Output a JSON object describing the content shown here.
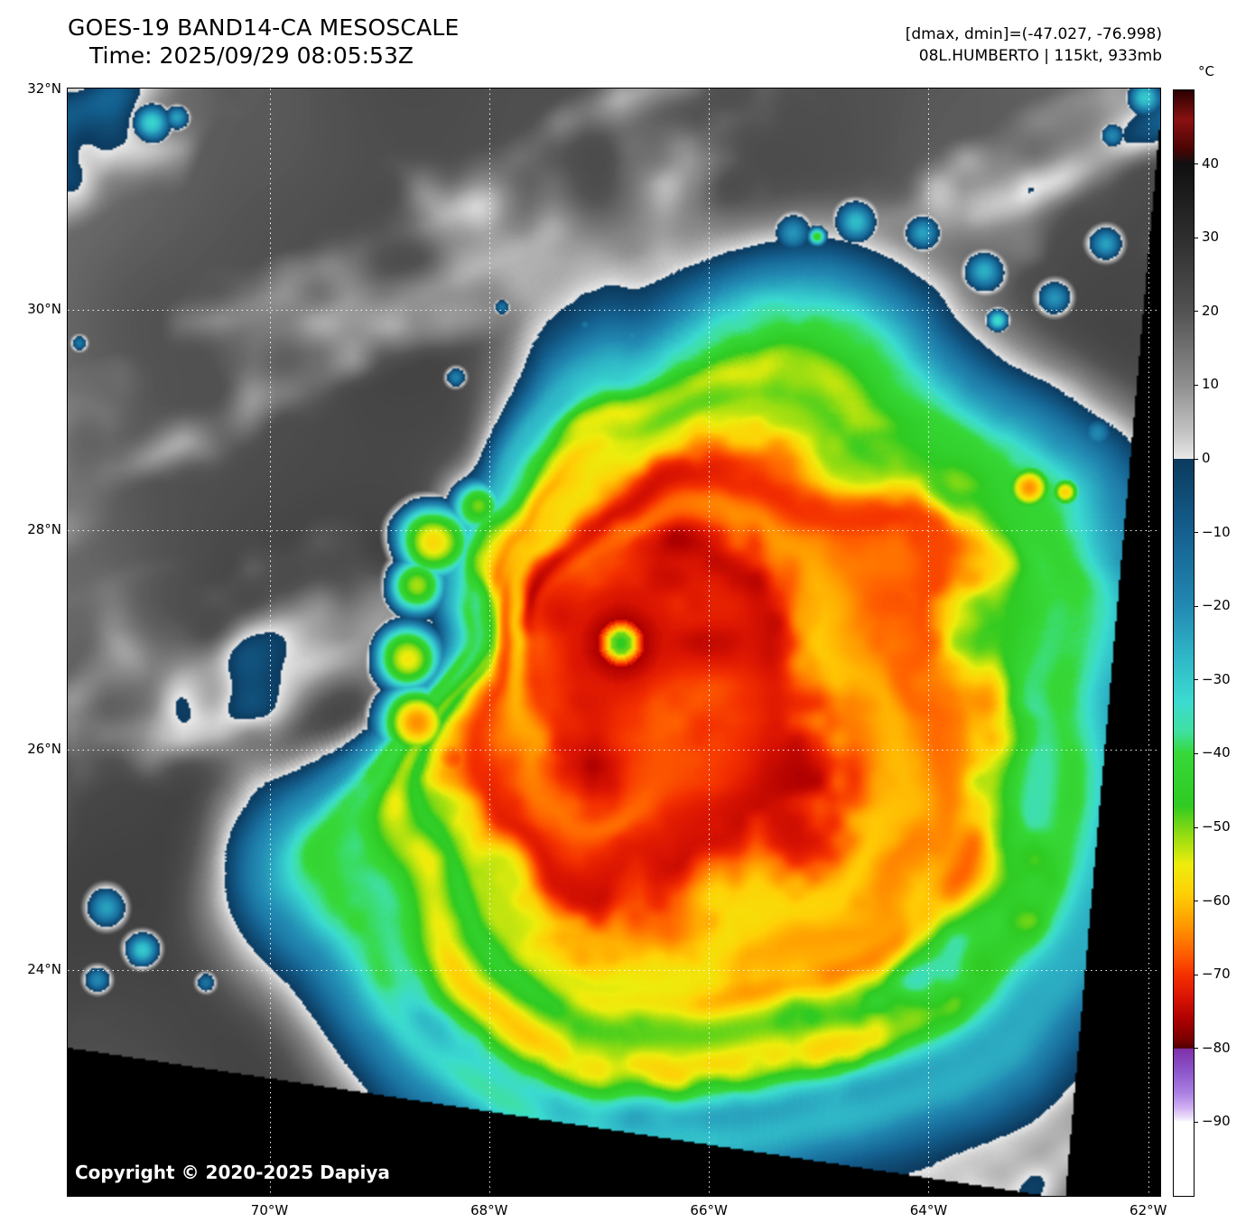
{
  "header": {
    "title": "GOES-19 BAND14-CA MESOSCALE",
    "time": "Time: 2025/09/29 08:05:53Z",
    "range_info": "[dmax, dmin]=(-47.027, -76.998)",
    "storm_info": "08L.HUMBERTO | 115kt, 933mb"
  },
  "map": {
    "copyright": "Copyright © 2020-2025 Dapiya",
    "lat_ticks": [
      {
        "label": "32°N",
        "deg": 32
      },
      {
        "label": "30°N",
        "deg": 30
      },
      {
        "label": "28°N",
        "deg": 28
      },
      {
        "label": "26°N",
        "deg": 26
      },
      {
        "label": "24°N",
        "deg": 24
      }
    ],
    "lon_ticks": [
      {
        "label": "70°W",
        "deg": 70
      },
      {
        "label": "68°W",
        "deg": 68
      },
      {
        "label": "66°W",
        "deg": 66
      },
      {
        "label": "64°W",
        "deg": 64
      },
      {
        "label": "62°W",
        "deg": 62
      }
    ]
  },
  "colorbar": {
    "unit_label": "°C",
    "temp_max": 50,
    "temp_min": -100,
    "tick_values": [
      40,
      30,
      20,
      10,
      0,
      -10,
      -20,
      -30,
      -40,
      -50,
      -60,
      -70,
      -80,
      -90
    ],
    "tick_labels": [
      "40",
      "30",
      "20",
      "10",
      "0",
      "−10",
      "−20",
      "−30",
      "−40",
      "−50",
      "−60",
      "−70",
      "−80",
      "−90"
    ],
    "stops": [
      [
        50,
        "#2b0000"
      ],
      [
        46,
        "#8a1111"
      ],
      [
        42,
        "#4a0404"
      ],
      [
        40,
        "#101010"
      ],
      [
        30,
        "#2e2e2e"
      ],
      [
        20,
        "#525252"
      ],
      [
        10,
        "#8f8f8f"
      ],
      [
        3,
        "#c8c8c8"
      ],
      [
        0.01,
        "#e8e8e8"
      ],
      [
        0,
        "#0c3a5e"
      ],
      [
        -10,
        "#14608f"
      ],
      [
        -20,
        "#2289b2"
      ],
      [
        -27,
        "#2fb7c7"
      ],
      [
        -33,
        "#3bdbd0"
      ],
      [
        -37,
        "#3fe0a0"
      ],
      [
        -40,
        "#36d838"
      ],
      [
        -47,
        "#2fca22"
      ],
      [
        -51,
        "#93dc12"
      ],
      [
        -55,
        "#eded0c"
      ],
      [
        -59,
        "#ffd006"
      ],
      [
        -63,
        "#ff9c00"
      ],
      [
        -67,
        "#ff6000"
      ],
      [
        -70,
        "#f43000"
      ],
      [
        -73,
        "#da1402"
      ],
      [
        -76,
        "#ae0000"
      ],
      [
        -79,
        "#740000"
      ],
      [
        -79.99,
        "#4f0000"
      ],
      [
        -80,
        "#7e2fa8"
      ],
      [
        -83,
        "#8c54ca"
      ],
      [
        -86,
        "#aa7fe2"
      ],
      [
        -88,
        "#cfaef2"
      ],
      [
        -89.5,
        "#eee6fc"
      ],
      [
        -90,
        "#ffffff"
      ],
      [
        -100,
        "#ffffff"
      ]
    ]
  }
}
